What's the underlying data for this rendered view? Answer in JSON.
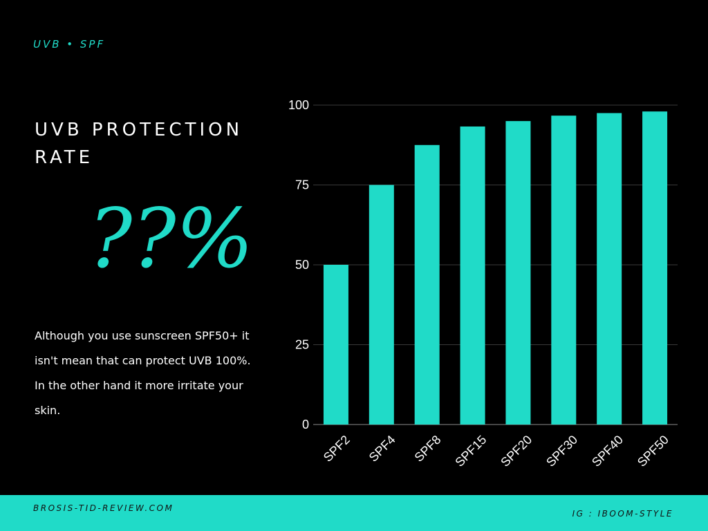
{
  "header": {
    "tag": "UVB • SPF"
  },
  "headline": {
    "line1": "UVB PROTECTION",
    "line2": "RATE"
  },
  "big_text": "??%",
  "body": {
    "line1": "Although you use sunscreen SPF50+ it",
    "line2": "isn't mean that can protect UVB 100%.",
    "line3": "In the other hand it more irritate your",
    "line4": "skin."
  },
  "footer": {
    "left": "BROSIS-TID-REVIEW.COM",
    "right": "IG : IBOOM-STYLE"
  },
  "colors": {
    "accent": "#20dbc8",
    "background": "#000000",
    "text": "#ffffff"
  },
  "chart_data": {
    "type": "bar",
    "categories": [
      "SPF2",
      "SPF4",
      "SPF8",
      "SPF15",
      "SPF20",
      "SPF30",
      "SPF40",
      "SPF50"
    ],
    "values": [
      50,
      75,
      87.5,
      93.3,
      95,
      96.7,
      97.5,
      98
    ],
    "title": "",
    "xlabel": "",
    "ylabel": "",
    "ylim": [
      0,
      100
    ],
    "yticks": [
      "0",
      "25",
      "50",
      "75",
      "100"
    ],
    "grid": true,
    "legend": "none",
    "bar_color": "#20dbc8"
  }
}
